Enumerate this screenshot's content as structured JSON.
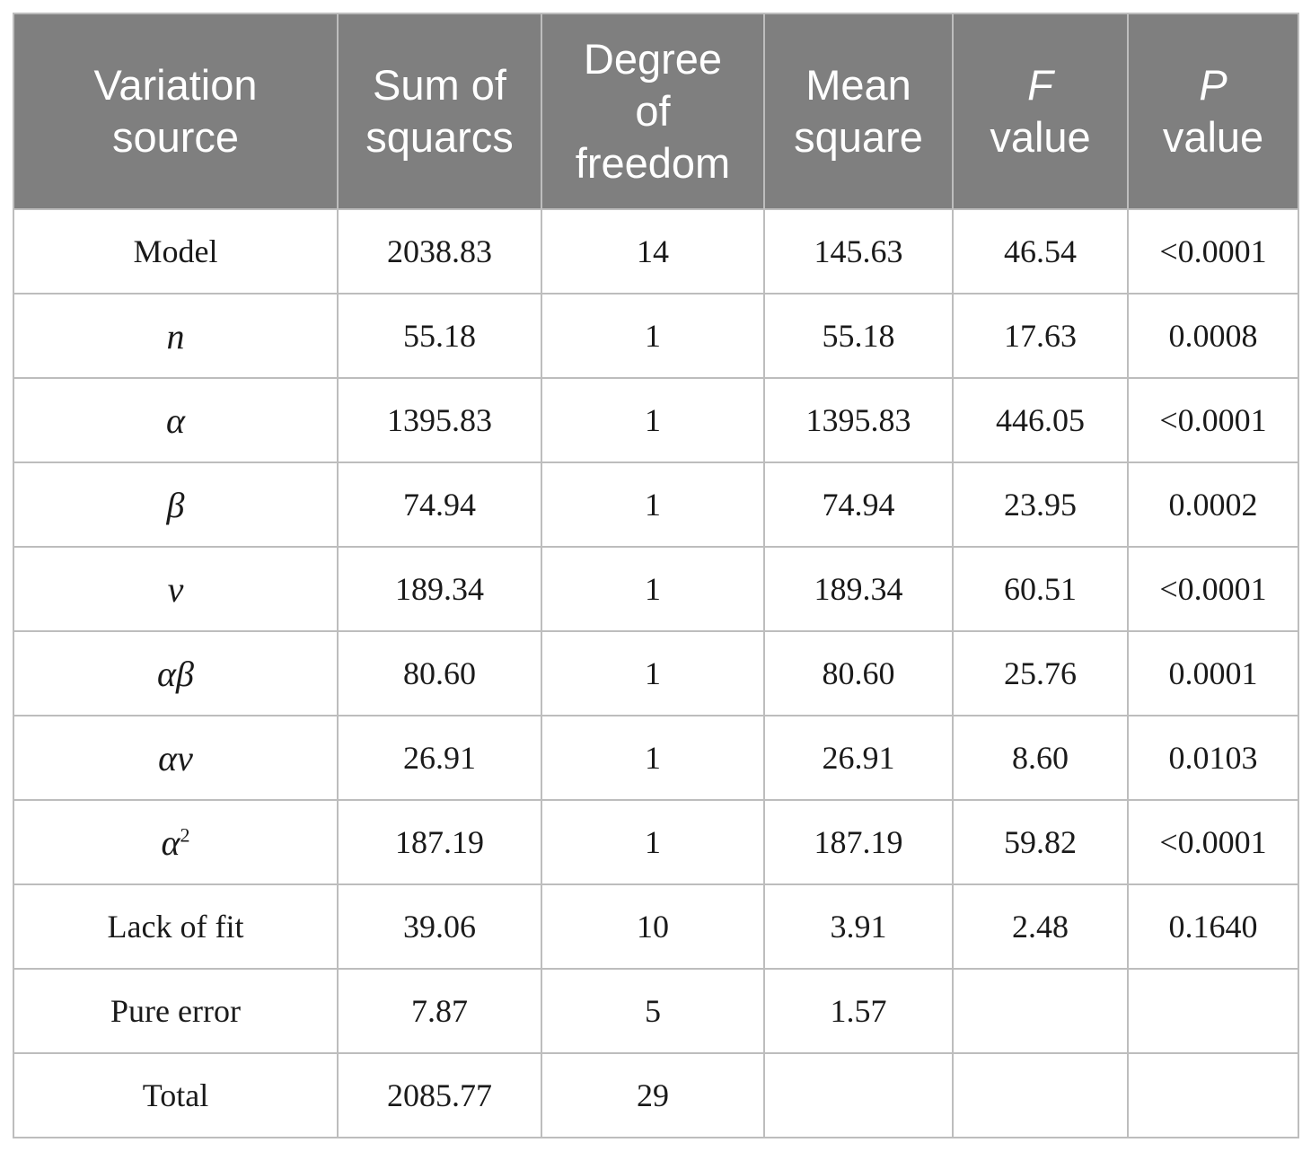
{
  "header": {
    "col0": [
      "Variation",
      "source"
    ],
    "col1": [
      "Sum of",
      "squarcs"
    ],
    "col2": [
      "Degree",
      "of",
      "freedom"
    ],
    "col3": [
      "Mean",
      "square"
    ],
    "col4": [
      "F",
      "value"
    ],
    "col5": [
      "P",
      "value"
    ]
  },
  "rows": [
    {
      "source": "Model",
      "ss": "2038.83",
      "df": "14",
      "ms": "145.63",
      "f": "46.54",
      "p": "<0.0001"
    },
    {
      "source": "n",
      "ss": "55.18",
      "df": "1",
      "ms": "55.18",
      "f": "17.63",
      "p": "0.0008"
    },
    {
      "source": "α",
      "ss": "1395.83",
      "df": "1",
      "ms": "1395.83",
      "f": "446.05",
      "p": "<0.0001"
    },
    {
      "source": "β",
      "ss": "74.94",
      "df": "1",
      "ms": "74.94",
      "f": "23.95",
      "p": "0.0002"
    },
    {
      "source": "ν",
      "ss": "189.34",
      "df": "1",
      "ms": "189.34",
      "f": "60.51",
      "p": "<0.0001"
    },
    {
      "source": "αβ",
      "ss": "80.60",
      "df": "1",
      "ms": "80.60",
      "f": "25.76",
      "p": "0.0001"
    },
    {
      "source": "αν",
      "ss": "26.91",
      "df": "1",
      "ms": "26.91",
      "f": "8.60",
      "p": "0.0103"
    },
    {
      "source": "α",
      "source_sup": "2",
      "ss": "187.19",
      "df": "1",
      "ms": "187.19",
      "f": "59.82",
      "p": "<0.0001"
    },
    {
      "source": "Lack of fit",
      "ss": "39.06",
      "df": "10",
      "ms": "3.91",
      "f": "2.48",
      "p": "0.1640"
    },
    {
      "source": "Pure error",
      "ss": "7.87",
      "df": "5",
      "ms": "1.57",
      "f": "",
      "p": ""
    },
    {
      "source": "Total",
      "ss": "2085.77",
      "df": "29",
      "ms": "",
      "f": "",
      "p": ""
    }
  ]
}
